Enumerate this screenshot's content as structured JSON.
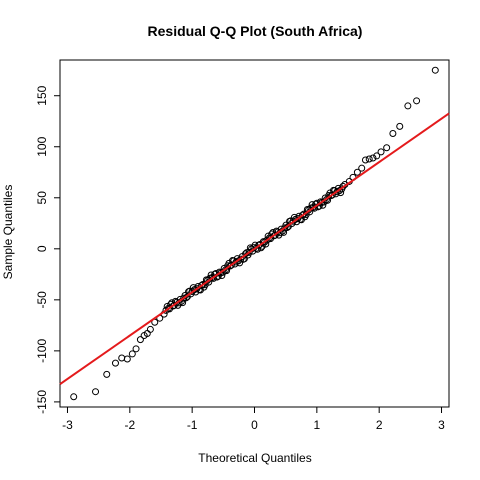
{
  "chart_data": {
    "type": "scatter",
    "title": "Residual Q-Q Plot (South Africa)",
    "xlabel": "Theoretical Quantiles",
    "ylabel": "Sample Quantiles",
    "xlim": [
      -3.12,
      3.12
    ],
    "ylim": [
      -155,
      185
    ],
    "xticks": [
      "-3",
      "-2",
      "-1",
      "0",
      "1",
      "2",
      "3"
    ],
    "yticks": [
      "-150",
      "-100",
      "-50",
      "0",
      "50",
      "100",
      "150"
    ],
    "grid": false,
    "legend": "none",
    "point_color": "#000000",
    "reference_line": {
      "color": "#e41a1c",
      "intercept": 0,
      "slope": 42.5
    },
    "tail_points": [
      {
        "x": -2.9,
        "y": -145
      },
      {
        "x": -2.55,
        "y": -140
      },
      {
        "x": -2.37,
        "y": -123
      },
      {
        "x": -2.23,
        "y": -112
      },
      {
        "x": -2.13,
        "y": -107
      },
      {
        "x": -2.04,
        "y": -108
      },
      {
        "x": -1.96,
        "y": -103
      },
      {
        "x": -1.9,
        "y": -98
      },
      {
        "x": -1.83,
        "y": -89
      },
      {
        "x": -1.77,
        "y": -85
      },
      {
        "x": -1.72,
        "y": -83
      },
      {
        "x": -1.67,
        "y": -79
      },
      {
        "x": -1.6,
        "y": -72
      },
      {
        "x": -1.52,
        "y": -68
      },
      {
        "x": -1.45,
        "y": -64
      },
      {
        "x": 1.45,
        "y": 63
      },
      {
        "x": 1.52,
        "y": 66
      },
      {
        "x": 1.58,
        "y": 70
      },
      {
        "x": 1.65,
        "y": 75
      },
      {
        "x": 1.72,
        "y": 79
      },
      {
        "x": 1.78,
        "y": 87
      },
      {
        "x": 1.84,
        "y": 88
      },
      {
        "x": 1.9,
        "y": 89
      },
      {
        "x": 1.96,
        "y": 91
      },
      {
        "x": 2.03,
        "y": 95
      },
      {
        "x": 2.12,
        "y": 99
      },
      {
        "x": 2.22,
        "y": 113
      },
      {
        "x": 2.33,
        "y": 120
      },
      {
        "x": 2.46,
        "y": 140
      },
      {
        "x": 2.6,
        "y": 145
      },
      {
        "x": 2.9,
        "y": 175
      }
    ],
    "body_x_range": [
      -1.42,
      1.42
    ],
    "body_count": 150
  }
}
